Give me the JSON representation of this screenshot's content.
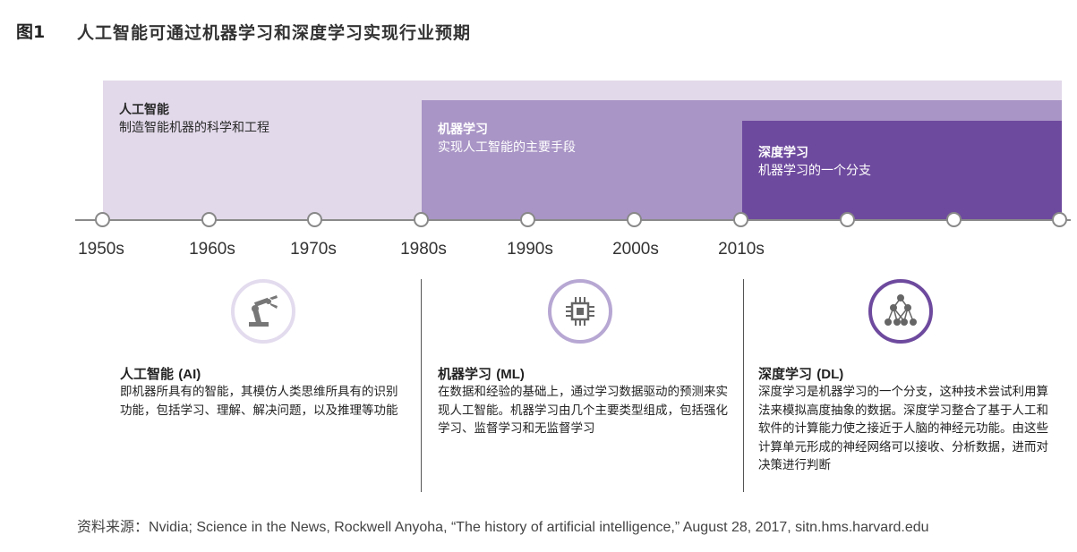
{
  "figure": {
    "label": "图1",
    "title": "人工智能可通过机器学习和深度学习实现行业预期"
  },
  "bands": {
    "ai": {
      "title": "人工智能",
      "subtitle": "制造智能机器的科学和工程",
      "color": "#e2d9ea"
    },
    "ml": {
      "title": "机器学习",
      "subtitle": "实现人工智能的主要手段",
      "color": "#a995c6"
    },
    "dl": {
      "title": "深度学习",
      "subtitle": "机器学习的一个分支",
      "color": "#6e4a9e"
    }
  },
  "timeline": {
    "decades": [
      "1950s",
      "1960s",
      "1970s",
      "1980s",
      "1990s",
      "2000s",
      "2010s"
    ]
  },
  "columns": [
    {
      "icon": "robot-arm-icon",
      "title_zh": "人工智能",
      "title_en": "(AI)",
      "body": "即机器所具有的智能，其模仿人类思维所具有的识别功能，包括学习、理解、解决问题，以及推理等功能"
    },
    {
      "icon": "cpu-chip-icon",
      "title_zh": "机器学习",
      "title_en": "(ML)",
      "body": "在数据和经验的基础上，通过学习数据驱动的预测来实现人工智能。机器学习由几个主要类型组成，包括强化学习、监督学习和无监督学习"
    },
    {
      "icon": "neural-network-icon",
      "title_zh": "深度学习",
      "title_en": "(DL)",
      "body": "深度学习是机器学习的一个分支，这种技术尝试利用算法来模拟高度抽象的数据。深度学习整合了基于人工和软件的计算能力使之接近于人脑的神经元功能。由这些计算单元形成的神经网络可以接收、分析数据，进而对决策进行判断"
    }
  ],
  "source": {
    "label": "资料来源：",
    "text": "Nvidia; Science in the News, Rockwell Anyoha, “The history of artificial intelligence,” August 28, 2017, sitn.hms.harvard.edu"
  }
}
